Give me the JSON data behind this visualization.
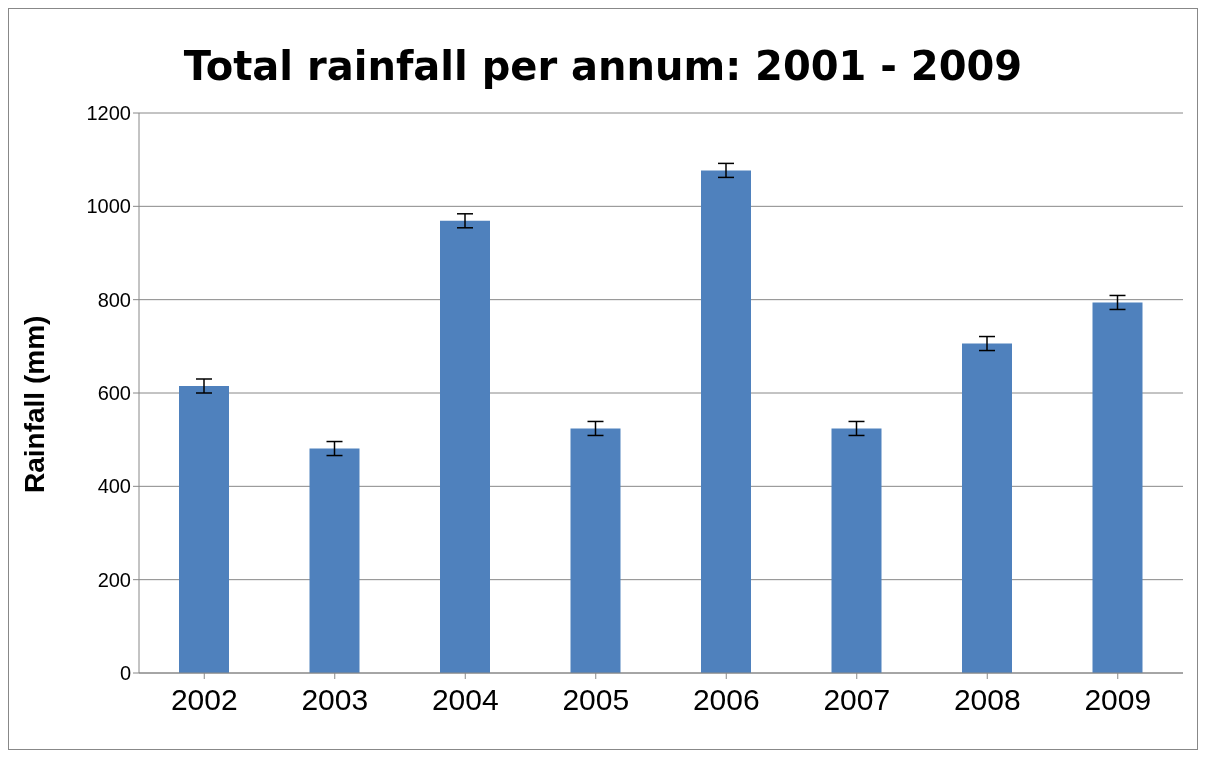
{
  "chart_data": {
    "type": "bar",
    "title": "Total rainfall per annum: 2001 - 2009",
    "ylabel": "Rainfall (mm)",
    "categories": [
      "2002",
      "2003",
      "2004",
      "2005",
      "2006",
      "2007",
      "2008",
      "2009"
    ],
    "values": [
      615,
      481,
      969,
      524,
      1077,
      524,
      706,
      794
    ],
    "errors": [
      15,
      15,
      15,
      15,
      15,
      15,
      15,
      15
    ],
    "color": "#4f81bd",
    "ylim": [
      0,
      1200
    ],
    "yticks": [
      0,
      200,
      400,
      600,
      800,
      1000,
      1200
    ],
    "grid": "y"
  }
}
